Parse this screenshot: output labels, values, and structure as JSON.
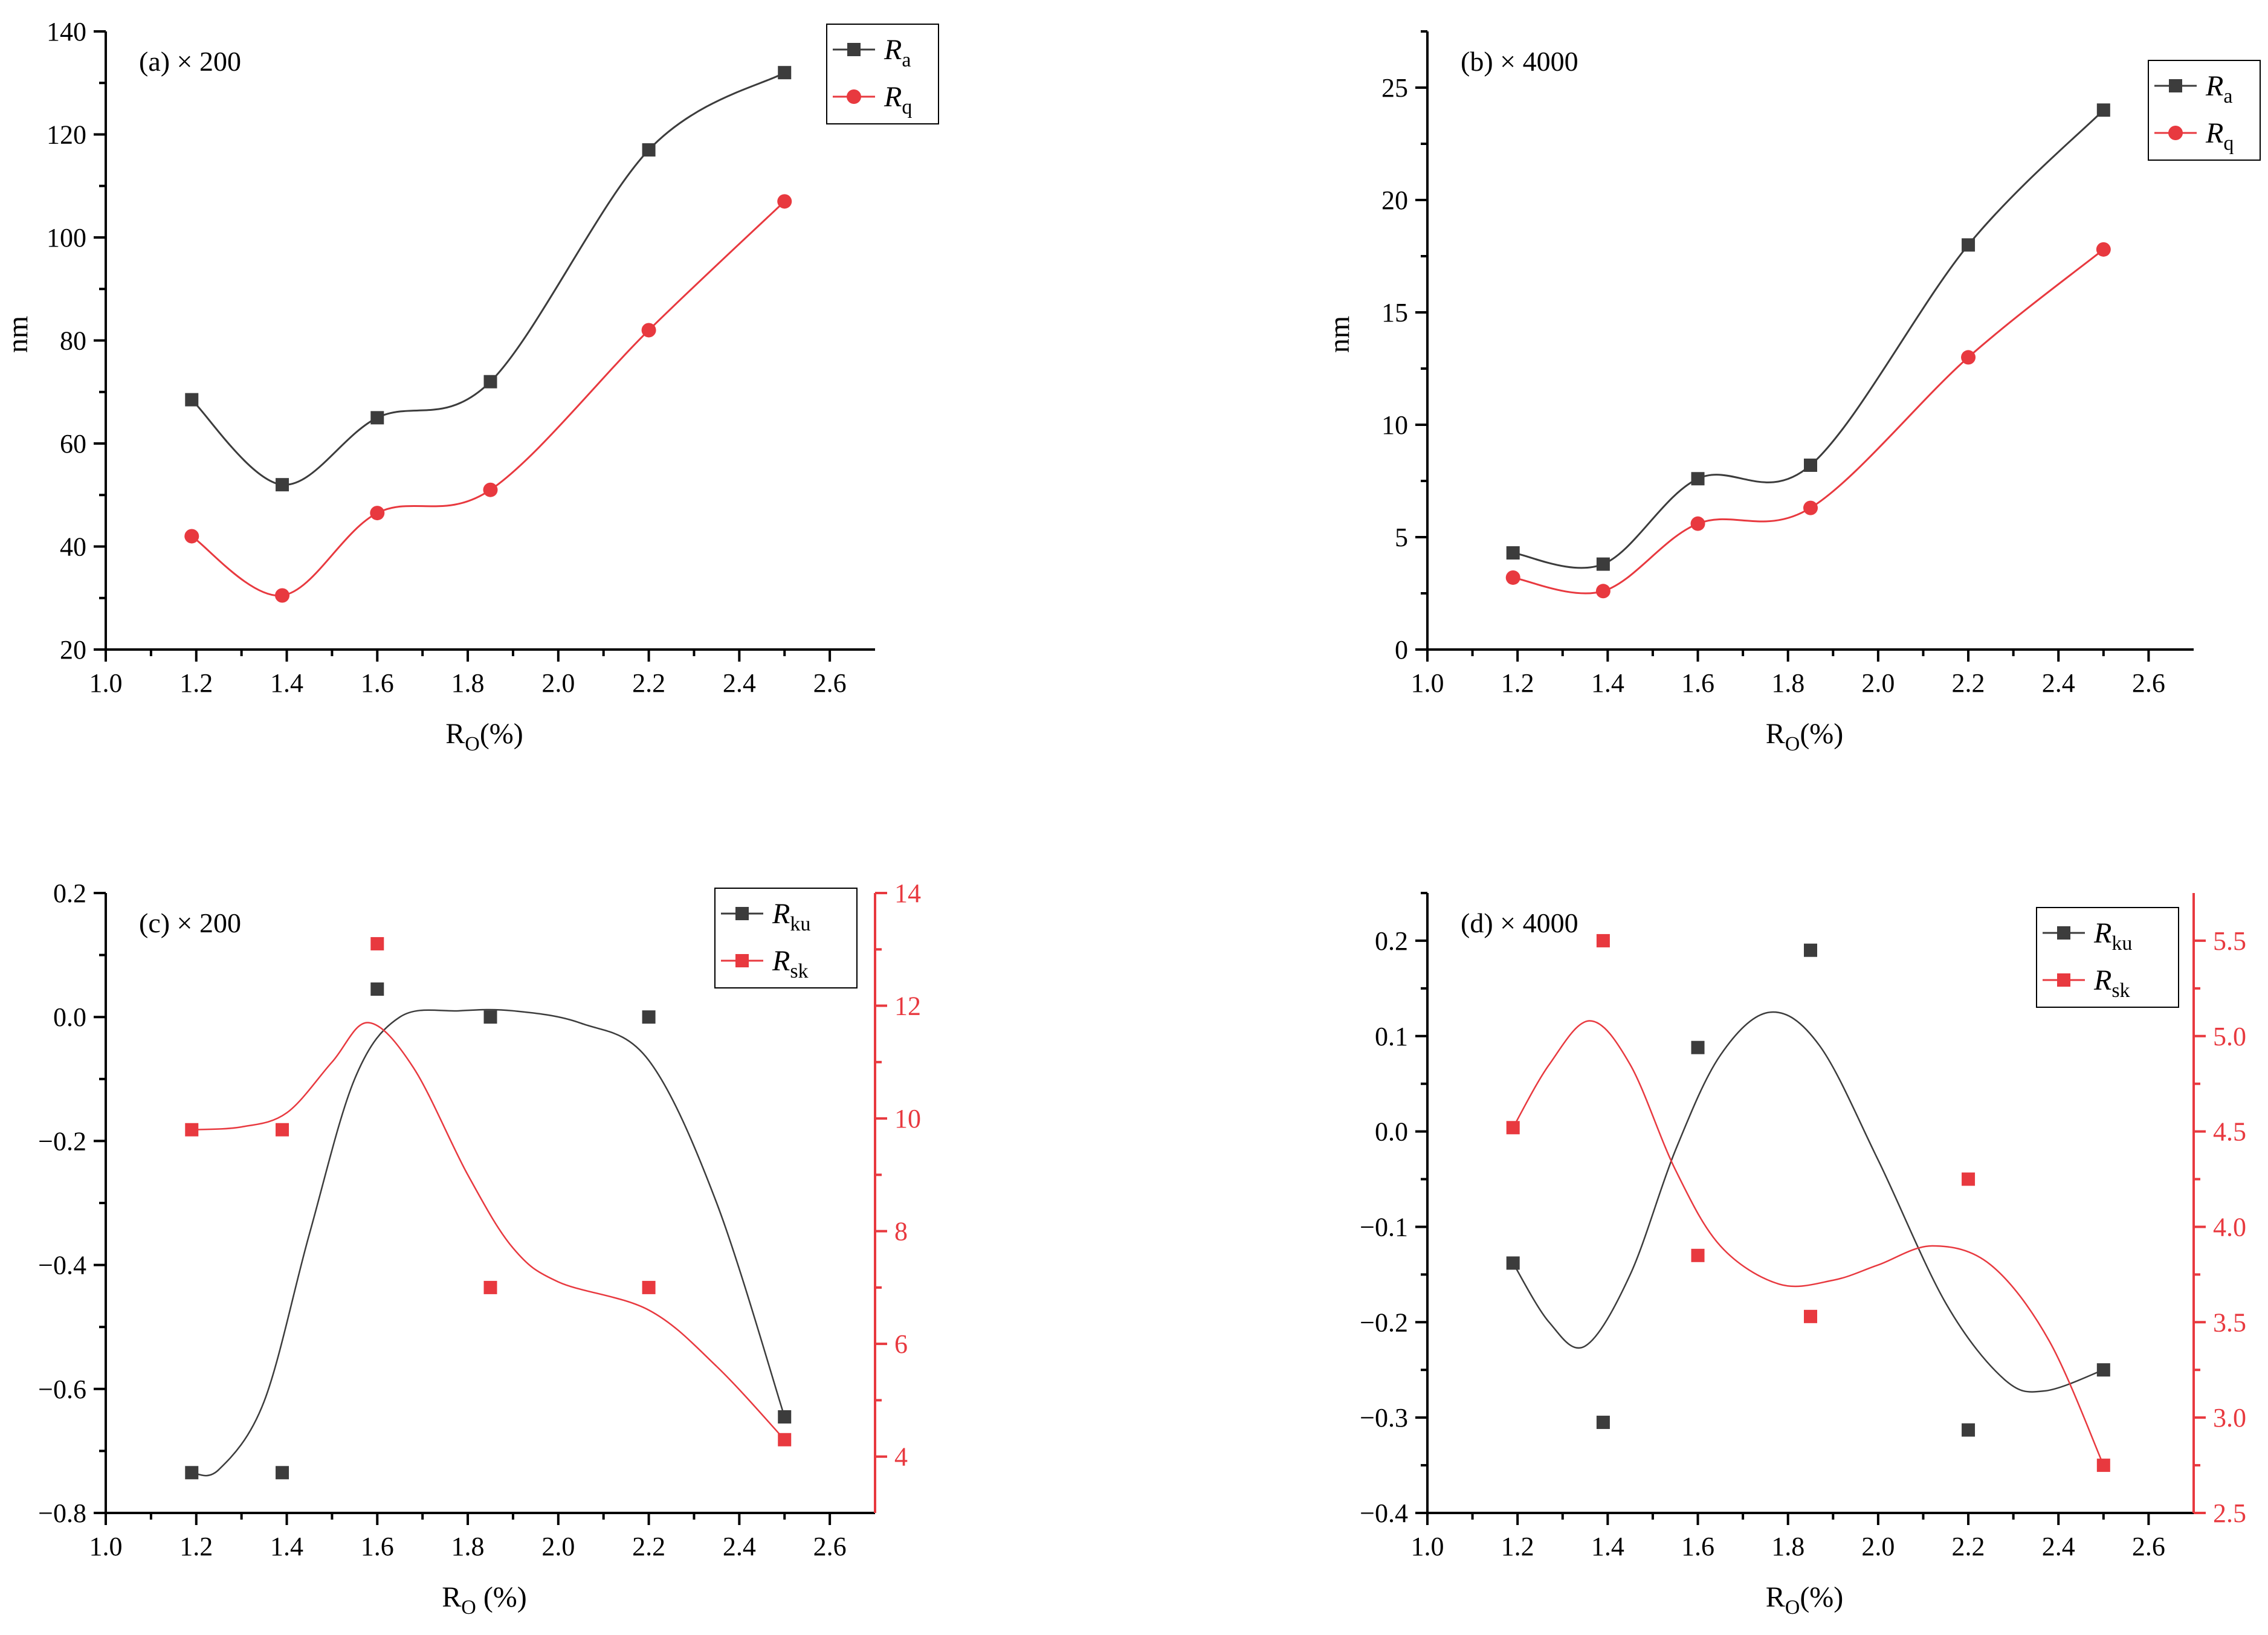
{
  "colors": {
    "black": "#3c3c3c",
    "red": "#e8393f",
    "axis": "#000000"
  },
  "chart_data": [
    {
      "id": "a",
      "type": "line",
      "panel_label": "(a)  × 200",
      "xlabel": "R",
      "xlabel_sub": "O",
      "xlabel_suffix": "(%)",
      "ylabel": "nm",
      "xlim": [
        1.0,
        2.7
      ],
      "ylim": [
        20,
        140
      ],
      "xticks": [
        "1.0",
        "1.2",
        "1.4",
        "1.6",
        "1.8",
        "2.0",
        "2.2",
        "2.4",
        "2.6"
      ],
      "yticks": [
        "20",
        "40",
        "60",
        "80",
        "100",
        "120",
        "140"
      ],
      "legend_position": "top-right",
      "series": [
        {
          "name": "R",
          "sub": "a",
          "marker": "square",
          "color": "#3c3c3c",
          "axis": "left",
          "x": [
            1.19,
            1.39,
            1.6,
            1.85,
            2.2,
            2.5
          ],
          "values": [
            68.5,
            52,
            65,
            72,
            117,
            132
          ],
          "line": "spline"
        },
        {
          "name": "R",
          "sub": "q",
          "marker": "circle",
          "color": "#e8393f",
          "axis": "left",
          "x": [
            1.19,
            1.39,
            1.6,
            1.85,
            2.2,
            2.5
          ],
          "values": [
            42,
            30.5,
            46.5,
            51,
            82,
            107
          ],
          "line": "spline"
        }
      ]
    },
    {
      "id": "b",
      "type": "line",
      "panel_label": "(b)  × 4000",
      "xlabel": "R",
      "xlabel_sub": "O",
      "xlabel_suffix": "(%)",
      "ylabel": "nm",
      "xlim": [
        1.0,
        2.7
      ],
      "ylim": [
        0,
        27.5
      ],
      "xticks": [
        "1.0",
        "1.2",
        "1.4",
        "1.6",
        "1.8",
        "2.0",
        "2.2",
        "2.4",
        "2.6"
      ],
      "yticks": [
        "0",
        "5",
        "10",
        "15",
        "20",
        "25"
      ],
      "legend_position": "top-right",
      "series": [
        {
          "name": "R",
          "sub": "a",
          "marker": "square",
          "color": "#3c3c3c",
          "axis": "left",
          "x": [
            1.19,
            1.39,
            1.6,
            1.85,
            2.2,
            2.5
          ],
          "values": [
            4.3,
            3.8,
            7.6,
            8.2,
            18,
            24
          ],
          "line": "spline"
        },
        {
          "name": "R",
          "sub": "q",
          "marker": "circle",
          "color": "#e8393f",
          "axis": "left",
          "x": [
            1.19,
            1.39,
            1.6,
            1.85,
            2.2,
            2.5
          ],
          "values": [
            3.2,
            2.6,
            5.6,
            6.3,
            13,
            17.8
          ],
          "line": "spline"
        }
      ]
    },
    {
      "id": "c",
      "type": "scatter",
      "panel_label": "(c) × 200",
      "xlabel": "R",
      "xlabel_sub": "O",
      "xlabel_suffix": " (%)",
      "xlim": [
        1.0,
        2.7
      ],
      "ylim": [
        -0.8,
        0.2
      ],
      "y2lim": [
        3,
        14
      ],
      "xticks": [
        "1.0",
        "1.2",
        "1.4",
        "1.6",
        "1.8",
        "2.0",
        "2.2",
        "2.4",
        "2.6"
      ],
      "yticks": [
        "−0.8",
        "−0.6",
        "−0.4",
        "−0.2",
        "0.0",
        "0.2"
      ],
      "y2ticks": [
        "4",
        "6",
        "8",
        "10",
        "12",
        "14"
      ],
      "legend_position": "top-right",
      "series": [
        {
          "name": "R",
          "sub": "ku",
          "marker": "square",
          "color": "#3c3c3c",
          "axis": "left",
          "x": [
            1.19,
            1.39,
            1.6,
            1.85,
            2.2,
            2.5
          ],
          "values": [
            -0.735,
            -0.735,
            0.045,
            0.0,
            0.0,
            -0.645
          ],
          "fit": [
            [
              1.19,
              -0.735
            ],
            [
              1.25,
              -0.73
            ],
            [
              1.35,
              -0.62
            ],
            [
              1.45,
              -0.35
            ],
            [
              1.55,
              -0.1
            ],
            [
              1.65,
              -0.0
            ],
            [
              1.78,
              0.01
            ],
            [
              1.9,
              0.01
            ],
            [
              2.05,
              -0.01
            ],
            [
              2.2,
              -0.07
            ],
            [
              2.35,
              -0.3
            ],
            [
              2.5,
              -0.645
            ]
          ]
        },
        {
          "name": "R",
          "sub": "sk",
          "marker": "square",
          "color": "#e8393f",
          "axis": "right",
          "x": [
            1.19,
            1.39,
            1.6,
            1.85,
            2.2,
            2.5
          ],
          "values": [
            9.8,
            9.8,
            13.1,
            7.0,
            7.0,
            4.3
          ],
          "fit": [
            [
              1.19,
              9.8
            ],
            [
              1.3,
              9.85
            ],
            [
              1.4,
              10.1
            ],
            [
              1.5,
              11.0
            ],
            [
              1.58,
              11.7
            ],
            [
              1.68,
              10.9
            ],
            [
              1.8,
              9.0
            ],
            [
              1.9,
              7.7
            ],
            [
              2.0,
              7.1
            ],
            [
              2.2,
              6.6
            ],
            [
              2.35,
              5.6
            ],
            [
              2.5,
              4.3
            ]
          ]
        }
      ]
    },
    {
      "id": "d",
      "type": "scatter",
      "panel_label": "(d) × 4000",
      "xlabel": "R",
      "xlabel_sub": "O",
      "xlabel_suffix": "(%)",
      "xlim": [
        1.0,
        2.7
      ],
      "ylim": [
        -0.4,
        0.25
      ],
      "y2lim": [
        2.5,
        5.75
      ],
      "xticks": [
        "1.0",
        "1.2",
        "1.4",
        "1.6",
        "1.8",
        "2.0",
        "2.2",
        "2.4",
        "2.6"
      ],
      "yticks": [
        "−0.4",
        "−0.3",
        "−0.2",
        "−0.1",
        "0.0",
        "0.1",
        "0.2"
      ],
      "y2ticks": [
        "2.5",
        "3.0",
        "3.5",
        "4.0",
        "4.5",
        "5.0",
        "5.5"
      ],
      "legend_position": "top-right",
      "series": [
        {
          "name": "R",
          "sub": "ku",
          "marker": "square",
          "color": "#3c3c3c",
          "axis": "left",
          "x": [
            1.19,
            1.39,
            1.6,
            1.85,
            2.2,
            2.5
          ],
          "values": [
            -0.138,
            -0.305,
            0.088,
            0.19,
            -0.313,
            -0.25
          ],
          "fit": [
            [
              1.19,
              -0.138
            ],
            [
              1.27,
              -0.2
            ],
            [
              1.35,
              -0.225
            ],
            [
              1.45,
              -0.15
            ],
            [
              1.55,
              -0.02
            ],
            [
              1.65,
              0.08
            ],
            [
              1.76,
              0.125
            ],
            [
              1.87,
              0.09
            ],
            [
              2.0,
              -0.03
            ],
            [
              2.15,
              -0.18
            ],
            [
              2.28,
              -0.26
            ],
            [
              2.37,
              -0.272
            ],
            [
              2.5,
              -0.25
            ]
          ]
        },
        {
          "name": "R",
          "sub": "sk",
          "marker": "square",
          "color": "#e8393f",
          "axis": "right",
          "x": [
            1.19,
            1.39,
            1.6,
            1.85,
            2.2,
            2.5
          ],
          "values": [
            4.52,
            5.5,
            3.85,
            3.53,
            4.25,
            2.75
          ],
          "fit": [
            [
              1.19,
              4.52
            ],
            [
              1.27,
              4.85
            ],
            [
              1.36,
              5.08
            ],
            [
              1.45,
              4.85
            ],
            [
              1.55,
              4.3
            ],
            [
              1.65,
              3.9
            ],
            [
              1.78,
              3.7
            ],
            [
              1.9,
              3.72
            ],
            [
              2.0,
              3.8
            ],
            [
              2.12,
              3.9
            ],
            [
              2.25,
              3.8
            ],
            [
              2.38,
              3.4
            ],
            [
              2.5,
              2.75
            ]
          ]
        }
      ]
    }
  ]
}
